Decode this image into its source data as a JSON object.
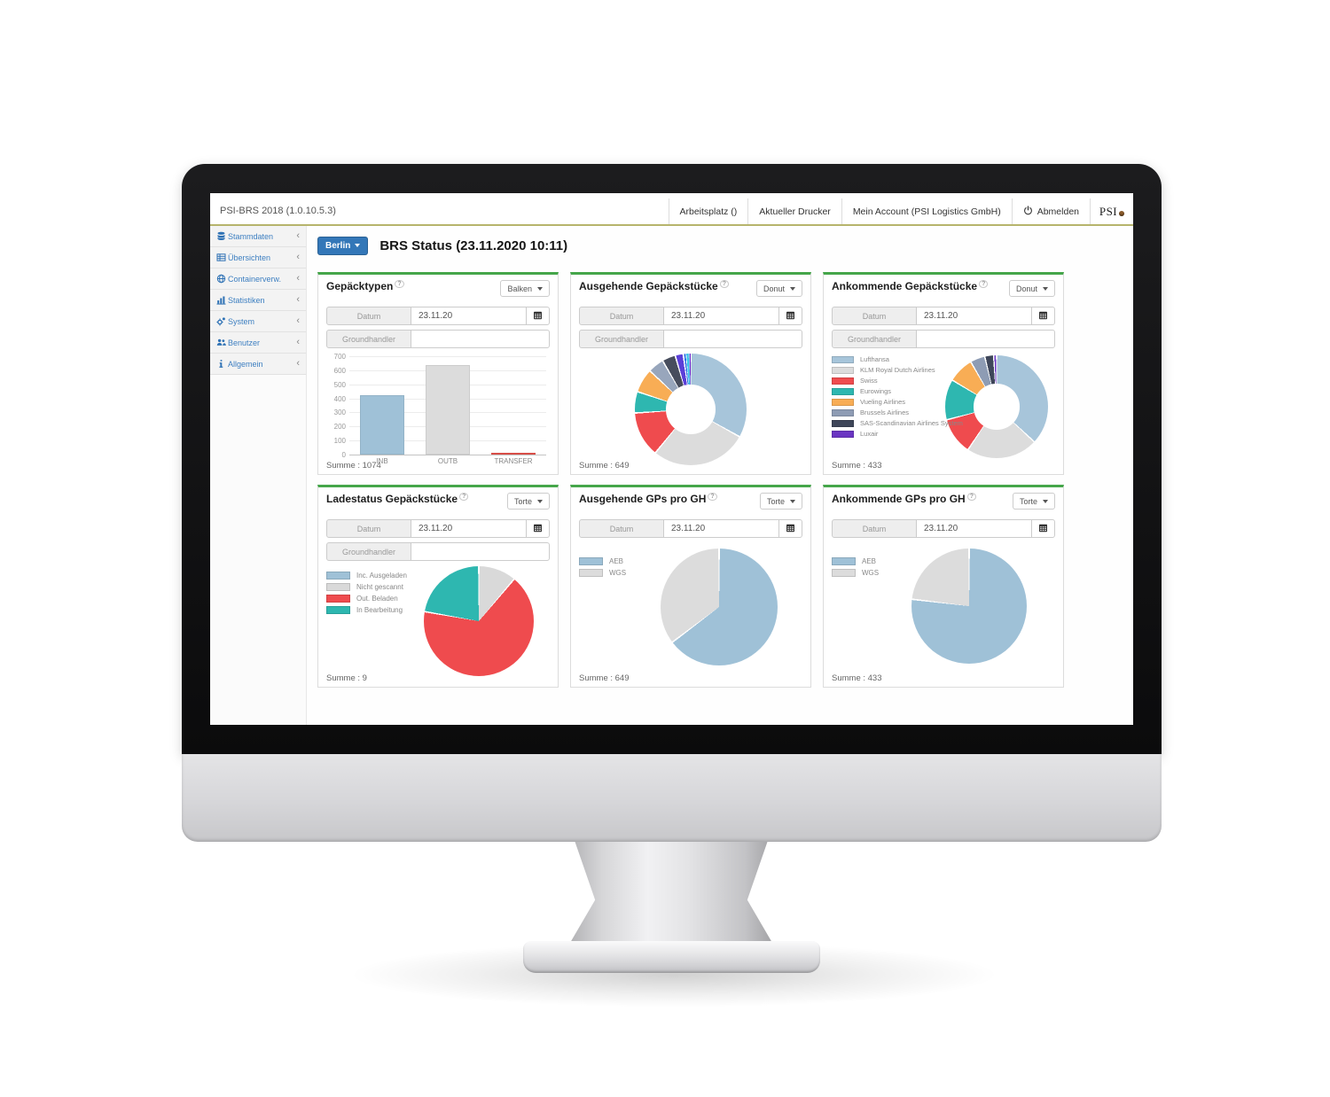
{
  "app": {
    "window_title": "PSI-BRS 2018 (1.0.10.5.3)",
    "help_glyph": "?",
    "chevron": "‹",
    "header": {
      "logo_text": "PSI",
      "nav_items": [
        {
          "label": "Arbeitsplatz ()",
          "name": "nav-arbeitsplatz",
          "icon": null
        },
        {
          "label": "Aktueller Drucker",
          "name": "nav-aktueller-drucker",
          "icon": null
        },
        {
          "label": "Mein Account (PSI Logistics GmbH)",
          "name": "nav-mein-account",
          "icon": null
        },
        {
          "label": "Abmelden",
          "name": "nav-abmelden",
          "icon": "power-icon"
        }
      ]
    },
    "sidebar": {
      "items": [
        {
          "label": "Stammdaten",
          "icon": "database-icon"
        },
        {
          "label": "Übersichten",
          "icon": "table-icon"
        },
        {
          "label": "Containerverw.",
          "icon": "globe-icon"
        },
        {
          "label": "Statistiken",
          "icon": "chart-icon"
        },
        {
          "label": "System",
          "icon": "gears-icon"
        },
        {
          "label": "Benutzer",
          "icon": "users-icon"
        },
        {
          "label": "Allgemein",
          "icon": "info-icon"
        }
      ]
    },
    "page": {
      "location_button": "Berlin",
      "title": "BRS Status (23.11.2020 10:11)"
    }
  },
  "panels": [
    {
      "title": "Gepäcktypen",
      "chart_type_label": "Balken",
      "fields": [
        {
          "label": "Datum",
          "value": "23.11.20",
          "calendar": true
        },
        {
          "label": "Groundhandler",
          "value": "",
          "calendar": false
        }
      ],
      "summe": "Summe : 1074"
    },
    {
      "title": "Ausgehende Gepäckstücke",
      "chart_type_label": "Donut",
      "fields": [
        {
          "label": "Datum",
          "value": "23.11.20",
          "calendar": true
        },
        {
          "label": "Groundhandler",
          "value": "",
          "calendar": false
        }
      ],
      "summe": "Summe : 649"
    },
    {
      "title": "Ankommende Gepäckstücke",
      "chart_type_label": "Donut",
      "fields": [
        {
          "label": "Datum",
          "value": "23.11.20",
          "calendar": true
        },
        {
          "label": "Groundhandler",
          "value": "",
          "calendar": false
        }
      ],
      "summe": "Summe : 433"
    },
    {
      "title": "Ladestatus Gepäckstücke",
      "chart_type_label": "Torte",
      "fields": [
        {
          "label": "Datum",
          "value": "23.11.20",
          "calendar": true
        },
        {
          "label": "Groundhandler",
          "value": "",
          "calendar": false
        }
      ],
      "summe": "Summe : 9"
    },
    {
      "title": "Ausgehende GPs pro GH",
      "chart_type_label": "Torte",
      "fields": [
        {
          "label": "Datum",
          "value": "23.11.20",
          "calendar": true
        }
      ],
      "summe": "Summe : 649"
    },
    {
      "title": "Ankommende GPs pro GH",
      "chart_type_label": "Torte",
      "fields": [
        {
          "label": "Datum",
          "value": "23.11.20",
          "calendar": true
        }
      ],
      "summe": "Summe : 433"
    }
  ],
  "chart_data": [
    {
      "type": "bar",
      "title": "Gepäcktypen",
      "categories": [
        "INB",
        "OUTB",
        "TRANSFER"
      ],
      "values": [
        420,
        640,
        14
      ],
      "colors": [
        "#9fc1d7",
        "#dcdcdc",
        "#e8544e"
      ],
      "ylabel": "",
      "xlabel": "",
      "ylim": [
        0,
        700
      ],
      "ytick_step": 100,
      "grid": true,
      "total": 1074
    },
    {
      "type": "donut",
      "title": "Ausgehende Gepäckstücke",
      "legend": false,
      "total": 649,
      "series": [
        {
          "value": 215,
          "color": "#a7c5da"
        },
        {
          "value": 180,
          "color": "#dcdcdc"
        },
        {
          "value": 85,
          "color": "#ef4b4e"
        },
        {
          "value": 40,
          "color": "#2eb7b0"
        },
        {
          "value": 45,
          "color": "#f8ad55"
        },
        {
          "value": 30,
          "color": "#98a6bc"
        },
        {
          "value": 25,
          "color": "#474d5d"
        },
        {
          "value": 15,
          "color": "#5b40d8"
        },
        {
          "value": 6,
          "color": "#2f72e4"
        },
        {
          "value": 4,
          "color": "#37c4e8"
        },
        {
          "value": 2,
          "color": "#9cc3ee"
        },
        {
          "value": 2,
          "color": "#6d28c9"
        }
      ]
    },
    {
      "type": "donut",
      "title": "Ankommende Gepäckstücke",
      "legend": true,
      "legend_position": "left",
      "total": 433,
      "series": [
        {
          "label": "Lufthansa",
          "value": 160,
          "color": "#a7c5da"
        },
        {
          "label": "KLM Royal Dutch Airlines",
          "value": 97,
          "color": "#dcdcdc"
        },
        {
          "label": "Swiss",
          "value": 50,
          "color": "#ef4b4e"
        },
        {
          "label": "Eurowings",
          "value": 55,
          "color": "#2eb7b0"
        },
        {
          "label": "Vueling Airlines",
          "value": 35,
          "color": "#f8ad55"
        },
        {
          "label": "Brussels Airlines",
          "value": 20,
          "color": "#8e9cb4"
        },
        {
          "label": "SAS-Scandinavian Airlines System",
          "value": 12,
          "color": "#3e4659"
        },
        {
          "label": "Luxair",
          "value": 4,
          "color": "#6a35c2"
        }
      ]
    },
    {
      "type": "pie",
      "title": "Ladestatus Gepäckstücke",
      "legend": true,
      "legend_position": "left",
      "total": 9,
      "series": [
        {
          "label": "Inc. Ausgeladen",
          "value": 0,
          "color": "#9fc1d7"
        },
        {
          "label": "Nicht gescannt",
          "value": 1,
          "color": "#d9d9d9"
        },
        {
          "label": "Out. Beladen",
          "value": 6,
          "color": "#ef4b4e"
        },
        {
          "label": "In Bearbeitung",
          "value": 2,
          "color": "#2eb7b0"
        }
      ]
    },
    {
      "type": "pie",
      "title": "Ausgehende GPs pro GH",
      "legend": true,
      "legend_position": "left",
      "total": 649,
      "series": [
        {
          "label": "AEB",
          "value": 420,
          "color": "#9fc1d7"
        },
        {
          "label": "WGS",
          "value": 229,
          "color": "#dcdcdc"
        }
      ]
    },
    {
      "type": "pie",
      "title": "Ankommende GPs pro GH",
      "legend": true,
      "legend_position": "left",
      "total": 433,
      "series": [
        {
          "label": "AEB",
          "value": 333,
          "color": "#9fc1d7"
        },
        {
          "label": "WGS",
          "value": 100,
          "color": "#dcdcdc"
        }
      ]
    }
  ]
}
